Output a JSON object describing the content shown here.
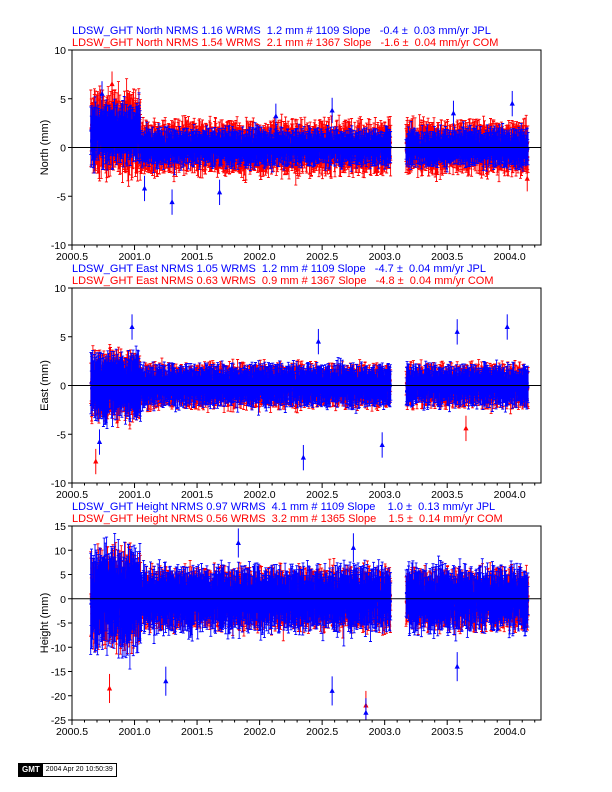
{
  "colors": {
    "jpl": "#0000ff",
    "com": "#ff0000",
    "axis": "#000000"
  },
  "stamp": {
    "logo": "GMT",
    "timestamp": "2004 Apr 20 10:50:39"
  },
  "chart_data": [
    {
      "type": "scatter",
      "panel": "north",
      "ylabel": "North (mm)",
      "ylim": [
        -10,
        10
      ],
      "yticks": [
        -10,
        -5,
        0,
        5,
        10
      ],
      "xlim": [
        2000.5,
        2004.25
      ],
      "xticks": [
        "2000.5",
        "2001.0",
        "2001.5",
        "2002.0",
        "2002.5",
        "2003.0",
        "2003.5",
        "2004.0"
      ],
      "header_lines": [
        "LDSW_GHT North NRMS 1.16 WRMS  1.2 mm # 1109 Slope   -0.4 ±  0.03 mm/yr JPL",
        "LDSW_GHT North NRMS 1.54 WRMS  2.1 mm # 1367 Slope   -1.6 ±  0.04 mm/yr COM"
      ],
      "series": [
        {
          "name": "JPL",
          "color": "#0000ff",
          "count": 1109,
          "slope": -0.4,
          "slope_sigma": 0.03,
          "wrms": 1.2,
          "nrms": 1.16
        },
        {
          "name": "COM",
          "color": "#ff0000",
          "count": 1367,
          "slope": -1.6,
          "slope_sigma": 0.04,
          "wrms": 2.1,
          "nrms": 1.54
        }
      ],
      "outliers": [
        {
          "series": "JPL",
          "x": 2000.74,
          "y": 5.5
        },
        {
          "series": "COM",
          "x": 2000.82,
          "y": 6.5
        },
        {
          "series": "JPL",
          "x": 2001.08,
          "y": -4.2
        },
        {
          "series": "JPL",
          "x": 2001.3,
          "y": -5.6
        },
        {
          "series": "JPL",
          "x": 2001.68,
          "y": -4.6
        },
        {
          "series": "JPL",
          "x": 2002.13,
          "y": 3.2
        },
        {
          "series": "JPL",
          "x": 2002.58,
          "y": 3.8
        },
        {
          "series": "JPL",
          "x": 2003.55,
          "y": 3.5
        },
        {
          "series": "JPL",
          "x": 2004.02,
          "y": 4.5
        },
        {
          "series": "COM",
          "x": 2004.14,
          "y": -3.2
        }
      ]
    },
    {
      "type": "scatter",
      "panel": "east",
      "ylabel": "East (mm)",
      "ylim": [
        -10,
        10
      ],
      "yticks": [
        -10,
        -5,
        0,
        5,
        10
      ],
      "xlim": [
        2000.5,
        2004.25
      ],
      "xticks": [
        "2000.5",
        "2001.0",
        "2001.5",
        "2002.0",
        "2002.5",
        "2003.0",
        "2003.5",
        "2004.0"
      ],
      "header_lines": [
        "LDSW_GHT East NRMS 1.05 WRMS  1.2 mm # 1109 Slope   -4.7 ±  0.04 mm/yr JPL",
        "LDSW_GHT East NRMS 0.63 WRMS  0.9 mm # 1367 Slope   -4.8 ±  0.04 mm/yr COM"
      ],
      "series": [
        {
          "name": "JPL",
          "color": "#0000ff",
          "count": 1109,
          "slope": -4.7,
          "slope_sigma": 0.04,
          "wrms": 1.2,
          "nrms": 1.05
        },
        {
          "name": "COM",
          "color": "#ff0000",
          "count": 1367,
          "slope": -4.8,
          "slope_sigma": 0.04,
          "wrms": 0.9,
          "nrms": 0.63
        }
      ],
      "outliers": [
        {
          "series": "COM",
          "x": 2000.69,
          "y": -7.8
        },
        {
          "series": "JPL",
          "x": 2000.72,
          "y": -5.8
        },
        {
          "series": "JPL",
          "x": 2000.98,
          "y": 6.0
        },
        {
          "series": "JPL",
          "x": 2002.35,
          "y": -7.4
        },
        {
          "series": "JPL",
          "x": 2002.47,
          "y": 4.5
        },
        {
          "series": "JPL",
          "x": 2002.98,
          "y": -6.1
        },
        {
          "series": "JPL",
          "x": 2003.58,
          "y": 5.5
        },
        {
          "series": "COM",
          "x": 2003.65,
          "y": -4.4
        },
        {
          "series": "JPL",
          "x": 2003.98,
          "y": 6.0
        }
      ]
    },
    {
      "type": "scatter",
      "panel": "height",
      "ylabel": "Height (mm)",
      "ylim": [
        -25,
        15
      ],
      "yticks": [
        -25,
        -20,
        -15,
        -10,
        -5,
        0,
        5,
        10,
        15
      ],
      "xlim": [
        2000.5,
        2004.25
      ],
      "xticks": [
        "2000.5",
        "2001.0",
        "2001.5",
        "2002.0",
        "2002.5",
        "2003.0",
        "2003.5",
        "2004.0"
      ],
      "header_lines": [
        "LDSW_GHT Height NRMS 0.97 WRMS  4.1 mm # 1109 Slope    1.0 ±  0.13 mm/yr JPL",
        "LDSW_GHT Height NRMS 0.56 WRMS  3.2 mm # 1365 Slope    1.5 ±  0.14 mm/yr COM"
      ],
      "series": [
        {
          "name": "JPL",
          "color": "#0000ff",
          "count": 1109,
          "slope": 1.0,
          "slope_sigma": 0.13,
          "wrms": 4.1,
          "nrms": 0.97
        },
        {
          "name": "COM",
          "color": "#ff0000",
          "count": 1365,
          "slope": 1.5,
          "slope_sigma": 0.14,
          "wrms": 3.2,
          "nrms": 0.56
        }
      ],
      "outliers": [
        {
          "series": "COM",
          "x": 2000.8,
          "y": -18.5
        },
        {
          "series": "JPL",
          "x": 2001.25,
          "y": -17.0
        },
        {
          "series": "JPL",
          "x": 2002.58,
          "y": -19.0
        },
        {
          "series": "COM",
          "x": 2002.85,
          "y": -22.0
        },
        {
          "series": "JPL",
          "x": 2002.85,
          "y": -23.5
        },
        {
          "series": "JPL",
          "x": 2003.58,
          "y": -14.0
        },
        {
          "series": "JPL",
          "x": 2001.83,
          "y": 11.5
        },
        {
          "series": "JPL",
          "x": 2002.75,
          "y": 10.5
        }
      ]
    }
  ]
}
